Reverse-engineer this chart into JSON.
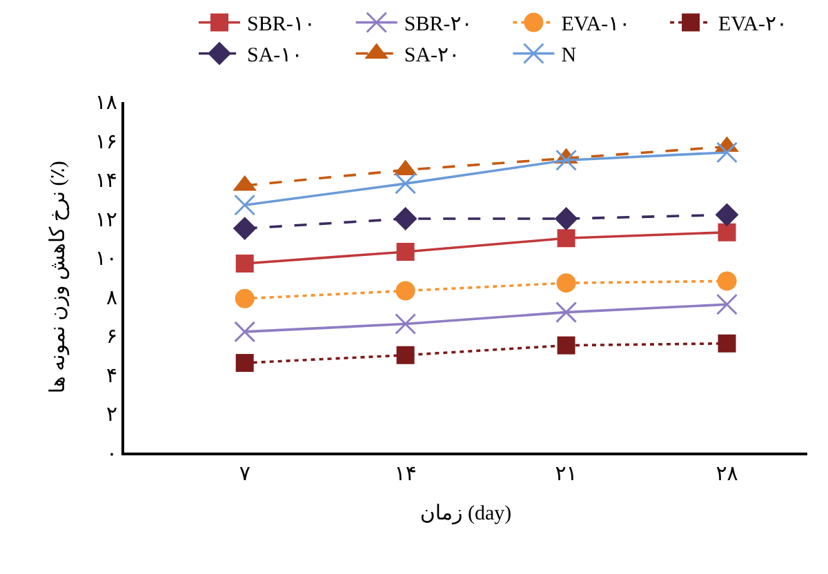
{
  "chart_data": {
    "type": "line",
    "xlabel": "زمان (day)",
    "ylabel": "نرخ کاهش وزن نمونه ها (٪)",
    "categories": [
      "۷",
      "۱۴",
      "۲۱",
      "۲۸"
    ],
    "ylim": [
      0,
      18
    ],
    "yticks": [
      {
        "value": 0,
        "label": "۰"
      },
      {
        "value": 2,
        "label": "۲"
      },
      {
        "value": 4,
        "label": "۴"
      },
      {
        "value": 6,
        "label": "۶"
      },
      {
        "value": 8,
        "label": "۸"
      },
      {
        "value": 10,
        "label": "۱۰"
      },
      {
        "value": 12,
        "label": "۱۲"
      },
      {
        "value": 14,
        "label": "۱۴"
      },
      {
        "value": 16,
        "label": "۱۶"
      },
      {
        "value": 18,
        "label": "۱۸"
      }
    ],
    "legend": "top",
    "series": [
      {
        "name": "SBR-۱۰",
        "color": "#c0393b",
        "marker": "square",
        "line_style": "solid",
        "values": [
          9.7,
          10.3,
          11.0,
          11.3
        ]
      },
      {
        "name": "SBR-۲۰",
        "color": "#8e7cc3",
        "marker": "cross",
        "line_style": "solid",
        "values": [
          6.2,
          6.6,
          7.2,
          7.6
        ]
      },
      {
        "name": "EVA-۱۰",
        "color": "#f79431",
        "marker": "circle",
        "line_style": "dotted",
        "values": [
          7.9,
          8.3,
          8.7,
          8.8
        ]
      },
      {
        "name": "EVA-۲۰",
        "color": "#7b1a1a",
        "marker": "square",
        "line_style": "dotted",
        "values": [
          4.6,
          5.0,
          5.5,
          5.6
        ]
      },
      {
        "name": "SA-۱۰",
        "color": "#3a2a5e",
        "marker": "diamond",
        "line_style": "dashed",
        "values": [
          11.5,
          12.0,
          12.0,
          12.2
        ]
      },
      {
        "name": "SA-۲۰",
        "color": "#c55a11",
        "marker": "triangle",
        "line_style": "dashed",
        "values": [
          13.7,
          14.5,
          15.1,
          15.7
        ]
      },
      {
        "name": "N",
        "color": "#6a9bd8",
        "marker": "cross",
        "line_style": "solid",
        "values": [
          12.7,
          13.8,
          15.0,
          15.4
        ]
      }
    ]
  }
}
